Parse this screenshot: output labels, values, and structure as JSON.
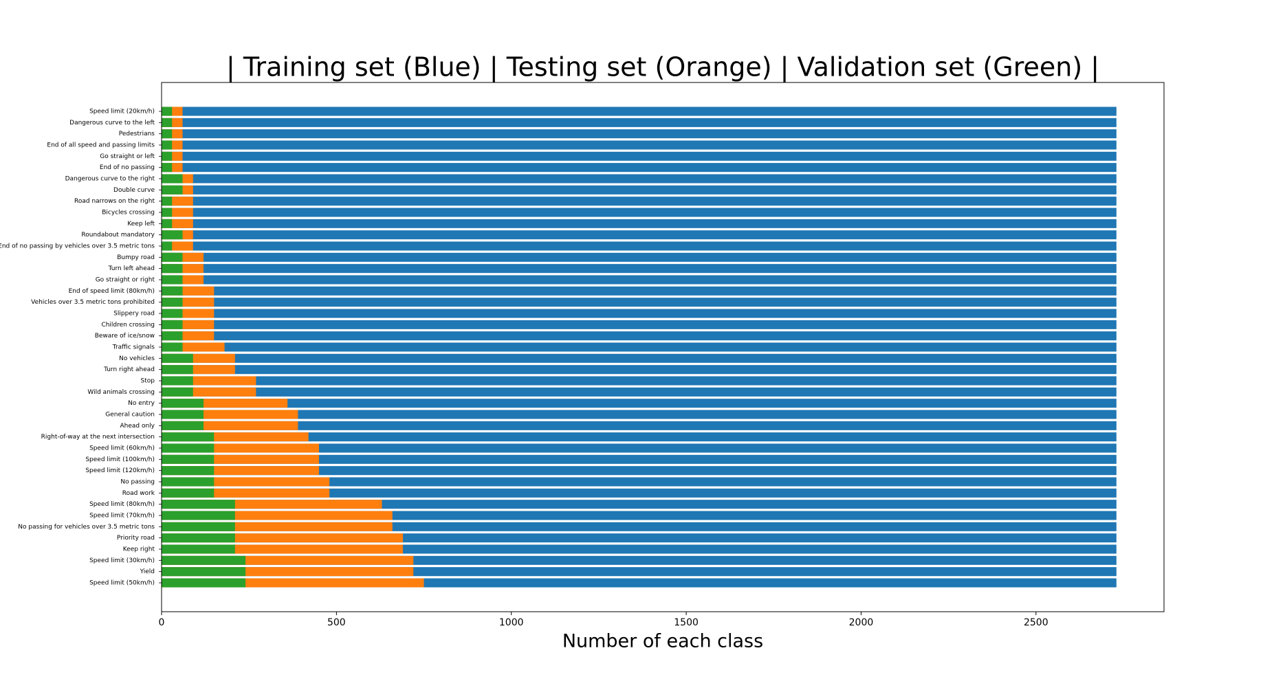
{
  "chart_data": {
    "type": "overlap-barh",
    "title": "| Training set (Blue) | Testing set (Orange) | Validation set (Green) |",
    "x_label": "Number of each class",
    "categories": [
      "Speed limit (20km/h)",
      "Dangerous curve to the left",
      "Pedestrians",
      "End of all speed and passing limits",
      "Go straight or left",
      "End of no passing",
      "Dangerous curve to the right",
      "Double curve",
      "Road narrows on the right",
      "Bicycles crossing",
      "Keep left",
      "Roundabout mandatory",
      "End of no passing by vehicles over 3.5 metric tons",
      "Bumpy road",
      "Turn left ahead",
      "Go straight or right",
      "End of speed limit (80km/h)",
      "Vehicles over 3.5 metric tons prohibited",
      "Slippery road",
      "Children crossing",
      "Beware of ice/snow",
      "Traffic signals",
      "No vehicles",
      "Turn right ahead",
      "Stop",
      "Wild animals crossing",
      "No entry",
      "General caution",
      "Ahead only",
      "Right-of-way at the next intersection",
      "Speed limit (60km/h)",
      "Speed limit (100km/h)",
      "Speed limit (120km/h)",
      "No passing",
      "Road work",
      "Speed limit (80km/h)",
      "Speed limit (70km/h)",
      "No passing for vehicles over 3.5 metric tons",
      "Priority road",
      "Keep right",
      "Speed limit (30km/h)",
      "Yield",
      "Speed limit (50km/h)"
    ],
    "series": [
      {
        "color": "#1f77b4",
        "values": [
          2730,
          2730,
          2730,
          2730,
          2730,
          2730,
          2730,
          2730,
          2730,
          2730,
          2730,
          2730,
          2730,
          2730,
          2730,
          2730,
          2730,
          2730,
          2730,
          2730,
          2730,
          2730,
          2730,
          2730,
          2730,
          2730,
          2730,
          2730,
          2730,
          2730,
          2730,
          2730,
          2730,
          2730,
          2730,
          2730,
          2730,
          2730,
          2730,
          2730,
          2730,
          2730,
          2730
        ]
      },
      {
        "color": "#ff7f0e",
        "values": [
          60,
          60,
          60,
          60,
          60,
          60,
          90,
          90,
          90,
          90,
          90,
          90,
          90,
          120,
          120,
          120,
          150,
          150,
          150,
          150,
          150,
          180,
          210,
          210,
          270,
          270,
          360,
          390,
          390,
          420,
          450,
          450,
          450,
          480,
          480,
          630,
          660,
          660,
          690,
          690,
          720,
          720,
          750
        ]
      },
      {
        "color": "#2ca02c",
        "values": [
          30,
          30,
          30,
          30,
          30,
          30,
          60,
          60,
          30,
          30,
          30,
          60,
          30,
          60,
          60,
          60,
          60,
          60,
          60,
          60,
          60,
          60,
          90,
          90,
          90,
          90,
          120,
          120,
          120,
          150,
          150,
          150,
          150,
          150,
          150,
          210,
          210,
          210,
          210,
          210,
          240,
          240,
          240
        ]
      }
    ],
    "xlim": [
      0,
      2866
    ],
    "xticks": [
      0,
      500,
      1000,
      1500,
      2000,
      2500
    ]
  }
}
